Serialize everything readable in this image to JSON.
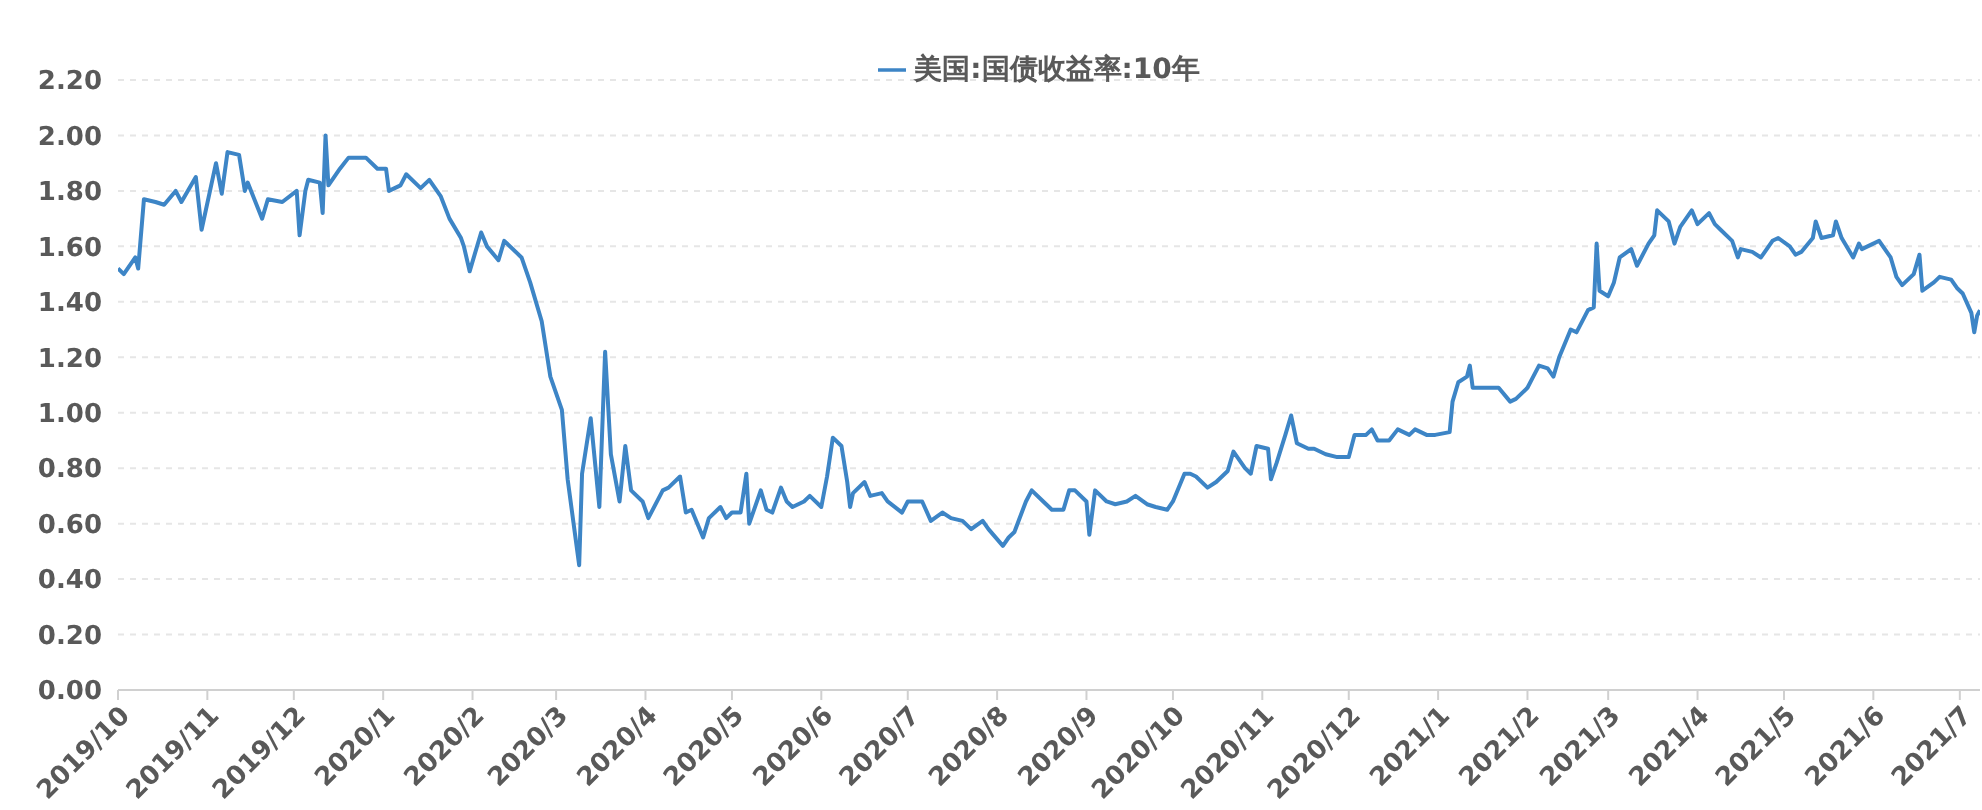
{
  "chart_data": {
    "type": "line",
    "legend": "top",
    "grid": "y",
    "marker": "none",
    "line_style": "solid",
    "xlim": [
      "2019-10-01",
      "2021-07-08"
    ],
    "xticks": [
      {
        "value": "2019-10-01",
        "label": "2019/10"
      },
      {
        "value": "2019-11-01",
        "label": "2019/11"
      },
      {
        "value": "2019-12-01",
        "label": "2019/12"
      },
      {
        "value": "2020-01-01",
        "label": "2020/1"
      },
      {
        "value": "2020-02-01",
        "label": "2020/2"
      },
      {
        "value": "2020-03-01",
        "label": "2020/3"
      },
      {
        "value": "2020-04-01",
        "label": "2020/4"
      },
      {
        "value": "2020-05-01",
        "label": "2020/5"
      },
      {
        "value": "2020-06-01",
        "label": "2020/6"
      },
      {
        "value": "2020-07-01",
        "label": "2020/7"
      },
      {
        "value": "2020-08-01",
        "label": "2020/8"
      },
      {
        "value": "2020-09-01",
        "label": "2020/9"
      },
      {
        "value": "2020-10-01",
        "label": "2020/10"
      },
      {
        "value": "2020-11-01",
        "label": "2020/11"
      },
      {
        "value": "2020-12-01",
        "label": "2020/12"
      },
      {
        "value": "2021-01-01",
        "label": "2021/1"
      },
      {
        "value": "2021-02-01",
        "label": "2021/2"
      },
      {
        "value": "2021-03-01",
        "label": "2021/3"
      },
      {
        "value": "2021-04-01",
        "label": "2021/4"
      },
      {
        "value": "2021-05-01",
        "label": "2021/5"
      },
      {
        "value": "2021-06-01",
        "label": "2021/6"
      },
      {
        "value": "2021-07-01",
        "label": "2021/7"
      }
    ],
    "ylim": [
      0,
      2.2
    ],
    "yticks": [
      {
        "value": 0,
        "label": "0.00"
      },
      {
        "value": 0.2,
        "label": "0.20"
      },
      {
        "value": 0.4,
        "label": "0.40"
      },
      {
        "value": 0.6,
        "label": "0.60"
      },
      {
        "value": 0.8,
        "label": "0.80"
      },
      {
        "value": 1,
        "label": "1.00"
      },
      {
        "value": 1.2,
        "label": "1.20"
      },
      {
        "value": 1.4,
        "label": "1.40"
      },
      {
        "value": 1.6,
        "label": "1.60"
      },
      {
        "value": 1.8,
        "label": "1.80"
      },
      {
        "value": 2,
        "label": "2.00"
      },
      {
        "value": 2.2,
        "label": "2.20"
      }
    ],
    "series": [
      {
        "name": "美国:国债收益率:10年",
        "color": "#3d85c6",
        "x": [
          "2019-10-01",
          "2019-10-03",
          "2019-10-07",
          "2019-10-08",
          "2019-10-10",
          "2019-10-14",
          "2019-10-17",
          "2019-10-21",
          "2019-10-23",
          "2019-10-28",
          "2019-10-30",
          "2019-11-04",
          "2019-11-06",
          "2019-11-08",
          "2019-11-12",
          "2019-11-14",
          "2019-11-15",
          "2019-11-20",
          "2019-11-22",
          "2019-11-27",
          "2019-12-02",
          "2019-12-03",
          "2019-12-05",
          "2019-12-06",
          "2019-12-10",
          "2019-12-11",
          "2019-12-12",
          "2019-12-13",
          "2019-12-17",
          "2019-12-20",
          "2019-12-26",
          "2019-12-30",
          "2020-01-02",
          "2020-01-03",
          "2020-01-07",
          "2020-01-09",
          "2020-01-14",
          "2020-01-17",
          "2020-01-21",
          "2020-01-24",
          "2020-01-28",
          "2020-01-29",
          "2020-01-31",
          "2020-02-04",
          "2020-02-06",
          "2020-02-10",
          "2020-02-12",
          "2020-02-18",
          "2020-02-21",
          "2020-02-25",
          "2020-02-28",
          "2020-03-03",
          "2020-03-05",
          "2020-03-09",
          "2020-03-10",
          "2020-03-13",
          "2020-03-16",
          "2020-03-18",
          "2020-03-20",
          "2020-03-23",
          "2020-03-25",
          "2020-03-27",
          "2020-03-31",
          "2020-04-02",
          "2020-04-07",
          "2020-04-09",
          "2020-04-13",
          "2020-04-15",
          "2020-04-17",
          "2020-04-21",
          "2020-04-23",
          "2020-04-27",
          "2020-04-29",
          "2020-05-01",
          "2020-05-04",
          "2020-05-06",
          "2020-05-07",
          "2020-05-11",
          "2020-05-13",
          "2020-05-15",
          "2020-05-18",
          "2020-05-20",
          "2020-05-22",
          "2020-05-26",
          "2020-05-28",
          "2020-06-01",
          "2020-06-03",
          "2020-06-05",
          "2020-06-08",
          "2020-06-10",
          "2020-06-11",
          "2020-06-12",
          "2020-06-16",
          "2020-06-18",
          "2020-06-22",
          "2020-06-24",
          "2020-06-29",
          "2020-07-01",
          "2020-07-06",
          "2020-07-09",
          "2020-07-13",
          "2020-07-16",
          "2020-07-20",
          "2020-07-23",
          "2020-07-27",
          "2020-07-29",
          "2020-08-03",
          "2020-08-05",
          "2020-08-07",
          "2020-08-11",
          "2020-08-13",
          "2020-08-17",
          "2020-08-20",
          "2020-08-24",
          "2020-08-26",
          "2020-08-28",
          "2020-09-01",
          "2020-09-02",
          "2020-09-03",
          "2020-09-04",
          "2020-09-08",
          "2020-09-11",
          "2020-09-15",
          "2020-09-18",
          "2020-09-22",
          "2020-09-25",
          "2020-09-29",
          "2020-10-01",
          "2020-10-05",
          "2020-10-07",
          "2020-10-09",
          "2020-10-13",
          "2020-10-16",
          "2020-10-20",
          "2020-10-22",
          "2020-10-26",
          "2020-10-28",
          "2020-10-30",
          "2020-11-03",
          "2020-11-04",
          "2020-11-06",
          "2020-11-09",
          "2020-11-11",
          "2020-11-13",
          "2020-11-17",
          "2020-11-19",
          "2020-11-23",
          "2020-11-27",
          "2020-12-01",
          "2020-12-03",
          "2020-12-07",
          "2020-12-09",
          "2020-12-11",
          "2020-12-15",
          "2020-12-18",
          "2020-12-22",
          "2020-12-24",
          "2020-12-28",
          "2020-12-31",
          "2021-01-05",
          "2021-01-06",
          "2021-01-08",
          "2021-01-11",
          "2021-01-12",
          "2021-01-13",
          "2021-01-15",
          "2021-01-19",
          "2021-01-22",
          "2021-01-26",
          "2021-01-28",
          "2021-02-01",
          "2021-02-03",
          "2021-02-05",
          "2021-02-08",
          "2021-02-10",
          "2021-02-12",
          "2021-02-16",
          "2021-02-18",
          "2021-02-22",
          "2021-02-24",
          "2021-02-25",
          "2021-02-26",
          "2021-03-01",
          "2021-03-03",
          "2021-03-05",
          "2021-03-09",
          "2021-03-11",
          "2021-03-15",
          "2021-03-17",
          "2021-03-18",
          "2021-03-22",
          "2021-03-24",
          "2021-03-26",
          "2021-03-30",
          "2021-04-01",
          "2021-04-05",
          "2021-04-07",
          "2021-04-09",
          "2021-04-13",
          "2021-04-15",
          "2021-04-16",
          "2021-04-20",
          "2021-04-23",
          "2021-04-27",
          "2021-04-29",
          "2021-05-03",
          "2021-05-05",
          "2021-05-07",
          "2021-05-11",
          "2021-05-12",
          "2021-05-14",
          "2021-05-18",
          "2021-05-19",
          "2021-05-21",
          "2021-05-25",
          "2021-05-27",
          "2021-05-28",
          "2021-06-01",
          "2021-06-03",
          "2021-06-07",
          "2021-06-09",
          "2021-06-11",
          "2021-06-15",
          "2021-06-17",
          "2021-06-18",
          "2021-06-22",
          "2021-06-24",
          "2021-06-28",
          "2021-06-30",
          "2021-07-02",
          "2021-07-05",
          "2021-07-06",
          "2021-07-07",
          "2021-07-08"
        ],
        "values": [
          1.52,
          1.5,
          1.56,
          1.52,
          1.77,
          1.76,
          1.75,
          1.8,
          1.76,
          1.85,
          1.66,
          1.9,
          1.79,
          1.94,
          1.93,
          1.8,
          1.83,
          1.7,
          1.77,
          1.76,
          1.8,
          1.64,
          1.8,
          1.84,
          1.83,
          1.72,
          2.0,
          1.82,
          1.88,
          1.92,
          1.92,
          1.88,
          1.88,
          1.8,
          1.82,
          1.86,
          1.81,
          1.84,
          1.78,
          1.7,
          1.63,
          1.6,
          1.51,
          1.65,
          1.6,
          1.55,
          1.62,
          1.56,
          1.47,
          1.33,
          1.13,
          1.01,
          0.76,
          0.45,
          0.78,
          0.98,
          0.66,
          1.22,
          0.85,
          0.68,
          0.88,
          0.72,
          0.68,
          0.62,
          0.72,
          0.73,
          0.77,
          0.64,
          0.65,
          0.55,
          0.62,
          0.66,
          0.62,
          0.64,
          0.64,
          0.78,
          0.6,
          0.72,
          0.65,
          0.64,
          0.73,
          0.68,
          0.66,
          0.68,
          0.7,
          0.66,
          0.77,
          0.91,
          0.88,
          0.75,
          0.66,
          0.71,
          0.75,
          0.7,
          0.71,
          0.68,
          0.64,
          0.68,
          0.68,
          0.61,
          0.64,
          0.62,
          0.61,
          0.58,
          0.61,
          0.58,
          0.52,
          0.55,
          0.57,
          0.68,
          0.72,
          0.68,
          0.65,
          0.65,
          0.72,
          0.72,
          0.68,
          0.56,
          0.64,
          0.72,
          0.68,
          0.67,
          0.68,
          0.7,
          0.67,
          0.66,
          0.65,
          0.68,
          0.78,
          0.78,
          0.77,
          0.73,
          0.75,
          0.79,
          0.86,
          0.8,
          0.78,
          0.88,
          0.87,
          0.76,
          0.82,
          0.92,
          0.99,
          0.89,
          0.87,
          0.87,
          0.85,
          0.84,
          0.84,
          0.92,
          0.92,
          0.94,
          0.9,
          0.9,
          0.94,
          0.92,
          0.94,
          0.92,
          0.92,
          0.93,
          1.04,
          1.11,
          1.13,
          1.17,
          1.09,
          1.09,
          1.09,
          1.09,
          1.04,
          1.05,
          1.09,
          1.13,
          1.17,
          1.16,
          1.13,
          1.2,
          1.3,
          1.29,
          1.37,
          1.38,
          1.61,
          1.44,
          1.42,
          1.47,
          1.56,
          1.59,
          1.53,
          1.61,
          1.64,
          1.73,
          1.69,
          1.61,
          1.67,
          1.73,
          1.68,
          1.72,
          1.68,
          1.66,
          1.62,
          1.56,
          1.59,
          1.58,
          1.56,
          1.62,
          1.63,
          1.6,
          1.57,
          1.58,
          1.63,
          1.69,
          1.63,
          1.64,
          1.69,
          1.63,
          1.56,
          1.61,
          1.59,
          1.61,
          1.62,
          1.56,
          1.49,
          1.46,
          1.5,
          1.57,
          1.44,
          1.47,
          1.49,
          1.48,
          1.45,
          1.43,
          1.36,
          1.29,
          1.35,
          1.37
        ]
      }
    ]
  }
}
